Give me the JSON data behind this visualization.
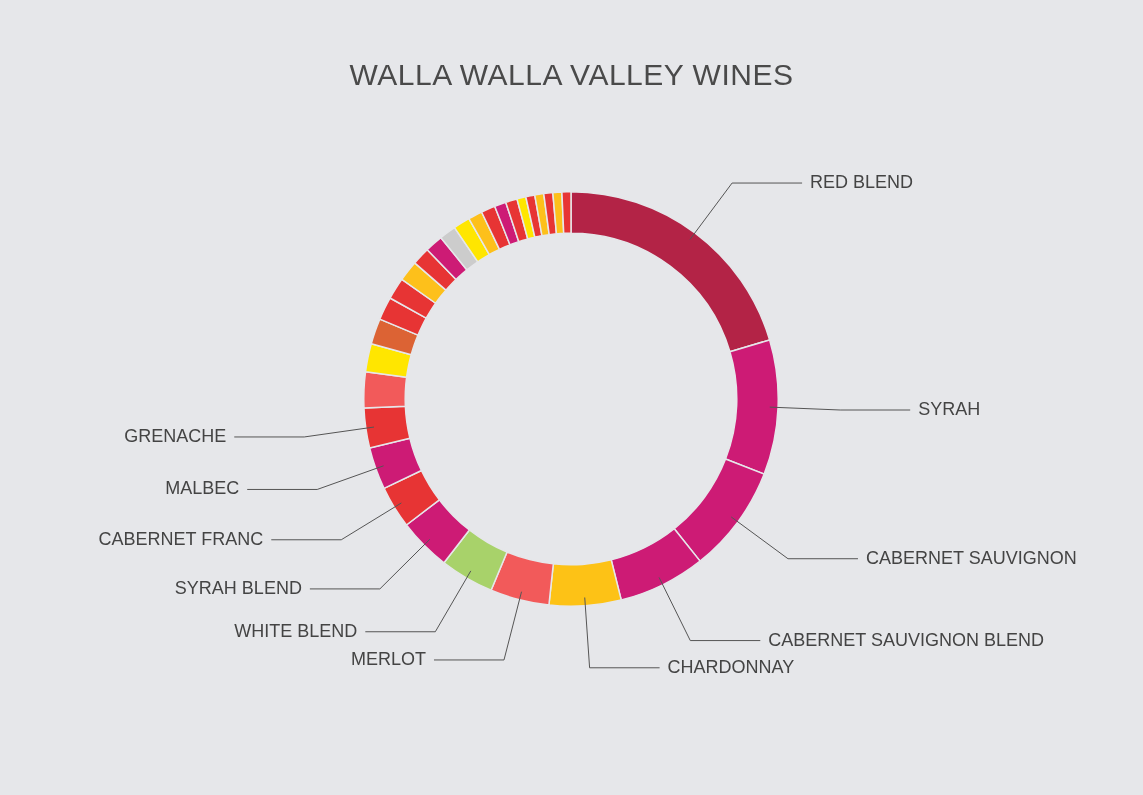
{
  "chart_data": {
    "type": "donut",
    "title": "WALLA WALLA VALLEY WINES",
    "categories": [
      "RED BLEND",
      "SYRAH",
      "CABERNET SAUVIGNON",
      "CABERNET SAUVIGNON BLEND",
      "CHARDONNAY",
      "MERLOT",
      "WHITE BLEND",
      "SYRAH BLEND",
      "CABERNET FRANC",
      "MALBEC",
      "GRENACHE",
      null,
      null,
      null,
      null,
      null,
      null,
      null,
      null,
      null,
      null,
      null,
      null,
      null,
      null,
      null,
      null,
      null,
      null,
      null,
      null
    ],
    "values": [
      20.4,
      10.5,
      8.4,
      6.8,
      5.6,
      4.6,
      4.2,
      4.1,
      3.3,
      3.3,
      3.1,
      2.8,
      2.2,
      2.0,
      1.8,
      1.7,
      1.6,
      1.4,
      1.4,
      1.3,
      1.3,
      1.1,
      1.1,
      0.9,
      0.9,
      0.7,
      0.7,
      0.7,
      0.7,
      0.7,
      0.7
    ],
    "colors": [
      "#b32346",
      "#cd1b75",
      "#cd1b75",
      "#cd1b75",
      "#fdc216",
      "#f25a5a",
      "#a8d26a",
      "#cd1b75",
      "#e73434",
      "#cd1b75",
      "#e73434",
      "#f25a5a",
      "#ffe600",
      "#dc6334",
      "#e73434",
      "#e73434",
      "#fdc01b",
      "#e73434",
      "#cd1b75",
      "#cccccc",
      "#ffe600",
      "#fdc01b",
      "#e73434",
      "#cd1b75",
      "#e73434",
      "#ffe600",
      "#e73434",
      "#fdc01b",
      "#e73434",
      "#fdc01b",
      "#e73434"
    ],
    "legend": false
  }
}
